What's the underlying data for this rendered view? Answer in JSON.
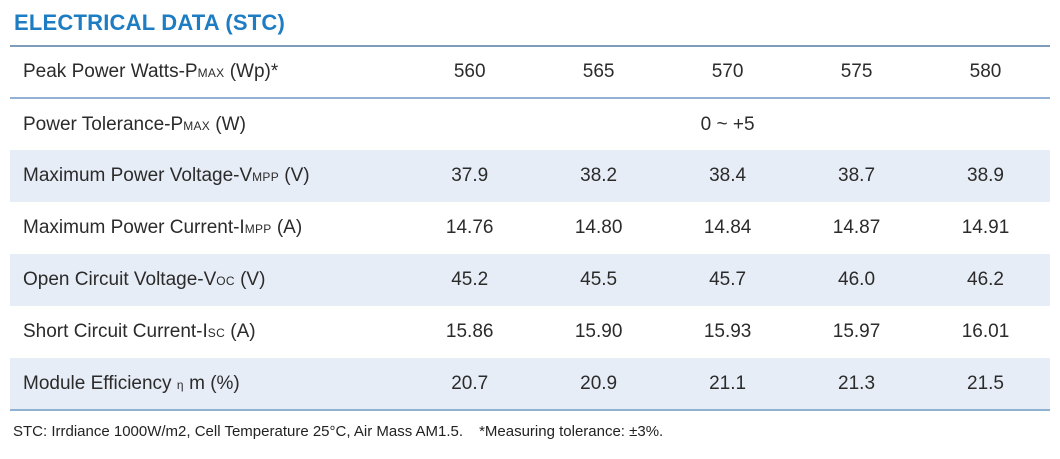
{
  "page": {
    "title": "ELECTRICAL DATA (STC)",
    "footnote_stc": "STC: Irrdiance 1000W/m2, Cell Temperature 25°C, Air Mass AM1.5.",
    "footnote_tolerance": "*Measuring tolerance: ±3%."
  },
  "colors": {
    "title_blue": "#1e7dc2",
    "row_shaded": "#e7edf6",
    "top_border": "#7f9cba",
    "row_divider": "#93b1d2",
    "bottom_border": "#8fb2d2",
    "text": "#2b2b2b"
  },
  "table": {
    "rows": [
      {
        "name": "peak-power",
        "label_parts": [
          {
            "t": "Peak Power Watts-P"
          },
          {
            "t": "MAX",
            "sub": true
          },
          {
            "t": " (Wp)*"
          }
        ],
        "values": [
          "560",
          "565",
          "570",
          "575",
          "580"
        ],
        "shaded": false,
        "divider_below": true
      },
      {
        "name": "power-tolerance",
        "label_parts": [
          {
            "t": "Power Tolerance-P"
          },
          {
            "t": "MAX",
            "sub": true
          },
          {
            "t": " (W)"
          }
        ],
        "merged_value": "0 ~ +5",
        "shaded": false
      },
      {
        "name": "max-power-voltage",
        "label_parts": [
          {
            "t": "Maximum Power Voltage-V"
          },
          {
            "t": "MPP",
            "sub": true
          },
          {
            "t": " (V)"
          }
        ],
        "values": [
          "37.9",
          "38.2",
          "38.4",
          "38.7",
          "38.9"
        ],
        "shaded": true
      },
      {
        "name": "max-power-current",
        "label_parts": [
          {
            "t": "Maximum Power Current-I"
          },
          {
            "t": "MPP",
            "sub": true
          },
          {
            "t": " (A)"
          }
        ],
        "values": [
          "14.76",
          "14.80",
          "14.84",
          "14.87",
          "14.91"
        ],
        "shaded": false
      },
      {
        "name": "open-circuit-voltage",
        "label_parts": [
          {
            "t": "Open Circuit Voltage-V"
          },
          {
            "t": "OC",
            "sub": true
          },
          {
            "t": " (V)"
          }
        ],
        "values": [
          "45.2",
          "45.5",
          "45.7",
          "46.0",
          "46.2"
        ],
        "shaded": true
      },
      {
        "name": "short-circuit-current",
        "label_parts": [
          {
            "t": "Short Circuit Current-I"
          },
          {
            "t": "SC",
            "sub": true
          },
          {
            "t": " (A)"
          }
        ],
        "values": [
          "15.86",
          "15.90",
          "15.93",
          "15.97",
          "16.01"
        ],
        "shaded": false
      },
      {
        "name": "module-efficiency",
        "label_parts": [
          {
            "t": "Module Efficiency "
          },
          {
            "t": "η",
            "sub": true
          },
          {
            "t": " m (%)"
          }
        ],
        "values": [
          "20.7",
          "20.9",
          "21.1",
          "21.3",
          "21.5"
        ],
        "shaded": true
      }
    ]
  }
}
